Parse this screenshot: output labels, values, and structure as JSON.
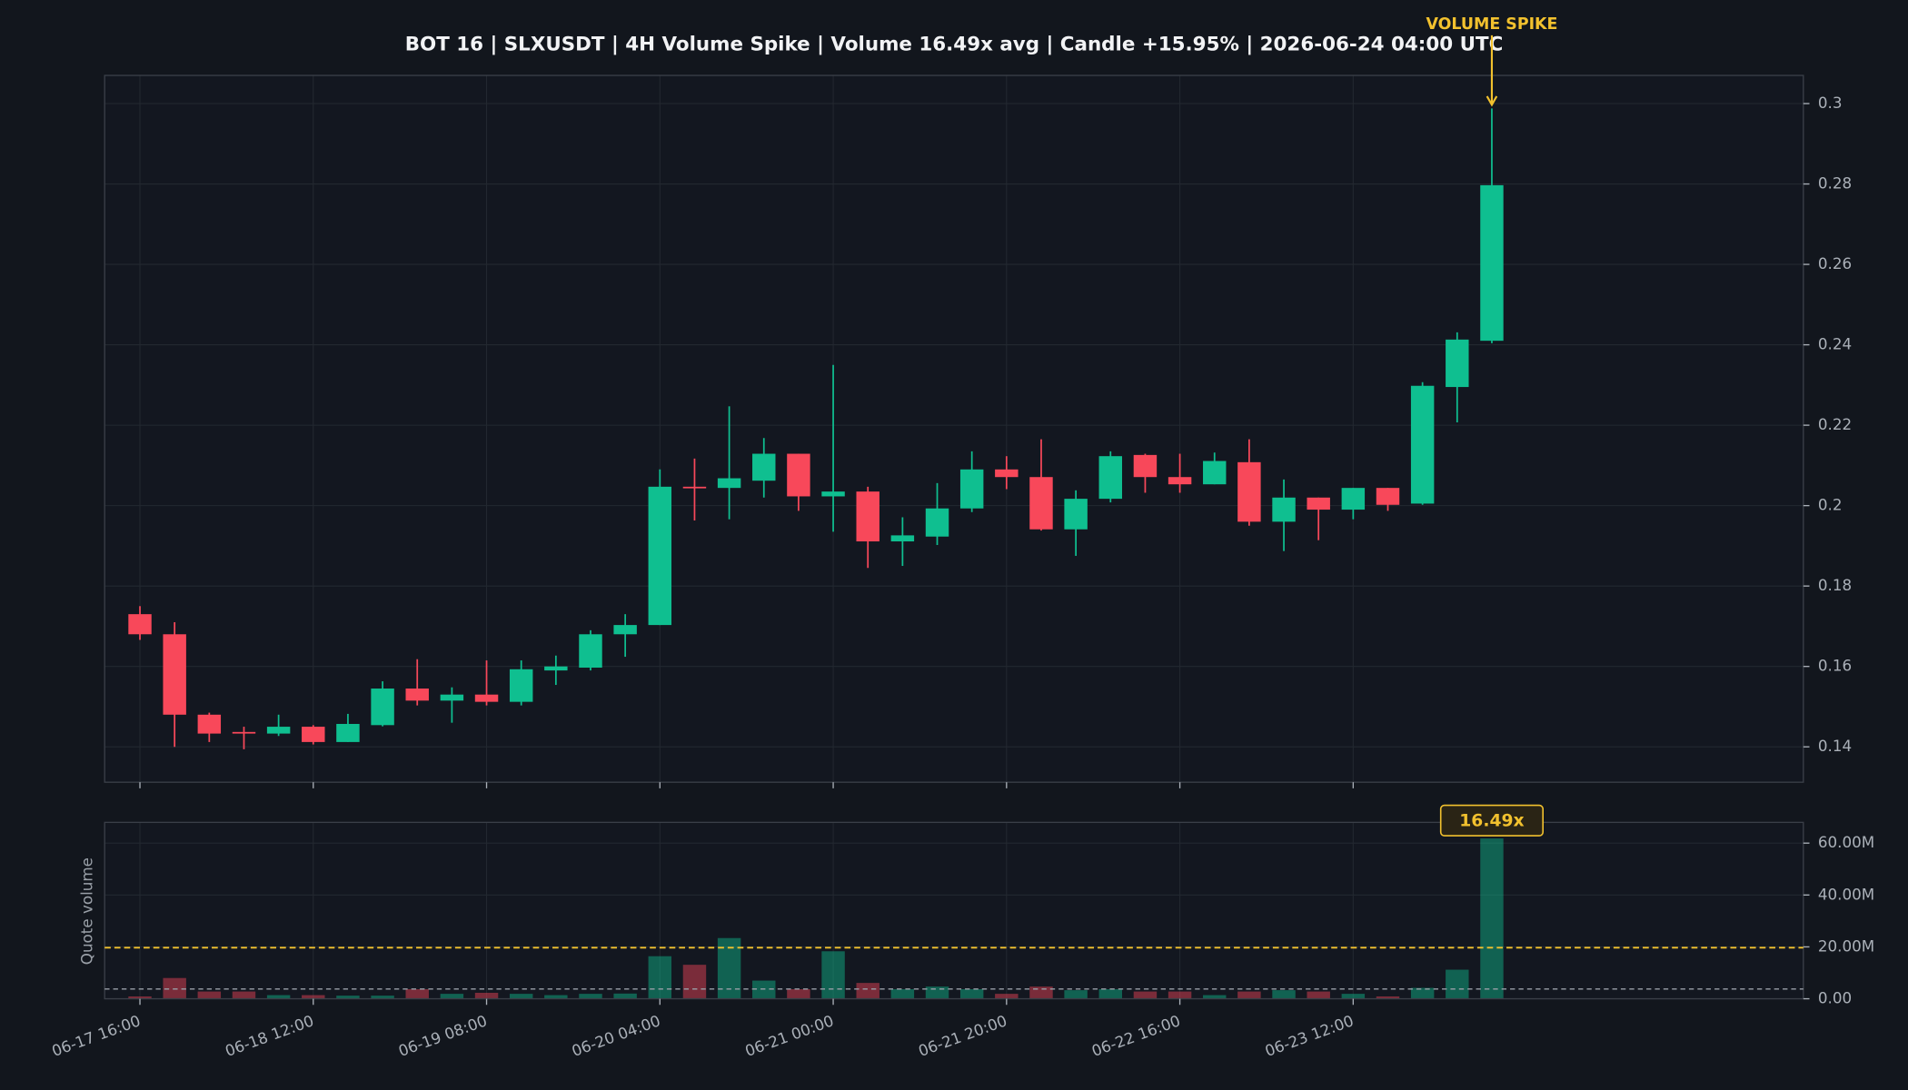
{
  "chart_data": [
    {
      "type": "candlestick",
      "title": "BOT 16 | SLXUSDT | 4H Volume Spike | Volume 16.49x avg | Candle +15.95% | 2026-06-24 04:00 UTC",
      "annotation": "VOLUME SPIKE",
      "up_color": "#0fbf90",
      "down_color": "#f8485a",
      "annotation_color": "#f2c12e",
      "open": [
        0.173,
        0.168,
        0.148,
        0.1437,
        0.1433,
        0.145,
        0.1412,
        0.1454,
        0.1545,
        0.1515,
        0.153,
        0.1512,
        0.159,
        0.1597,
        0.168,
        0.1703,
        0.2047,
        0.2044,
        0.2062,
        0.2129,
        0.2023,
        0.2035,
        0.1911,
        0.1923,
        0.1993,
        0.209,
        0.2071,
        0.1941,
        0.2017,
        0.2126,
        0.2071,
        0.2053,
        0.2108,
        0.196,
        0.202,
        0.199,
        0.2044,
        0.2005,
        0.2295,
        0.241
      ],
      "high": [
        0.175,
        0.171,
        0.1485,
        0.145,
        0.148,
        0.1454,
        0.1482,
        0.1563,
        0.1618,
        0.1548,
        0.1615,
        0.1615,
        0.1627,
        0.169,
        0.173,
        0.209,
        0.2117,
        0.2247,
        0.2168,
        0.2129,
        0.235,
        0.2047,
        0.1971,
        0.2056,
        0.2135,
        0.2123,
        0.2165,
        0.2038,
        0.2135,
        0.2129,
        0.2129,
        0.2132,
        0.2165,
        0.2065,
        0.202,
        0.2044,
        0.2044,
        0.2307,
        0.2431,
        0.2988
      ],
      "low": [
        0.1666,
        0.14,
        0.1412,
        0.1394,
        0.1427,
        0.1406,
        0.1412,
        0.1451,
        0.1503,
        0.146,
        0.1503,
        0.1503,
        0.1554,
        0.159,
        0.1624,
        0.1703,
        0.1963,
        0.1966,
        0.202,
        0.1987,
        0.1935,
        0.1845,
        0.185,
        0.1902,
        0.1984,
        0.2041,
        0.1938,
        0.1875,
        0.2008,
        0.2032,
        0.2032,
        0.2053,
        0.195,
        0.1887,
        0.1914,
        0.1966,
        0.1987,
        0.2002,
        0.2207,
        0.2404
      ],
      "close": [
        0.168,
        0.148,
        0.1433,
        0.1433,
        0.145,
        0.1412,
        0.1457,
        0.1545,
        0.1515,
        0.153,
        0.1512,
        0.1593,
        0.16,
        0.168,
        0.1703,
        0.2047,
        0.2043,
        0.2068,
        0.2129,
        0.2023,
        0.2035,
        0.1911,
        0.1926,
        0.1993,
        0.209,
        0.2071,
        0.1941,
        0.2017,
        0.2123,
        0.2071,
        0.2053,
        0.2111,
        0.196,
        0.202,
        0.199,
        0.2044,
        0.2002,
        0.2298,
        0.2413,
        0.2797
      ],
      "ylim": [
        0.1312,
        0.307
      ],
      "yticks": [
        0.14,
        0.16,
        0.18,
        0.2,
        0.22,
        0.24,
        0.26,
        0.28,
        0.3
      ],
      "grid": true
    },
    {
      "type": "bar",
      "ylabel": "Quote volume",
      "annotation": "16.49x",
      "x": [
        "06-17 16:00",
        null,
        null,
        null,
        null,
        "06-18 12:00",
        null,
        null,
        null,
        null,
        "06-19 08:00",
        null,
        null,
        null,
        null,
        "06-20 04:00",
        null,
        null,
        null,
        null,
        "06-21 00:00",
        null,
        null,
        null,
        null,
        "06-21 20:00",
        null,
        null,
        null,
        null,
        "06-22 16:00",
        null,
        null,
        null,
        null,
        "06-23 12:00",
        null,
        null,
        null,
        null
      ],
      "values": [
        900000,
        8000000,
        2800000,
        2800000,
        1400000,
        1400000,
        1200000,
        1200000,
        3700000,
        1900000,
        2300000,
        1900000,
        1400000,
        1900000,
        2000000,
        16400000,
        13100000,
        23400000,
        7000000,
        3700000,
        18300000,
        6100000,
        3700000,
        4700000,
        3700000,
        1900000,
        4700000,
        3300000,
        3700000,
        2800000,
        2800000,
        1400000,
        2800000,
        3300000,
        2800000,
        1900000,
        900000,
        4200000,
        11200000,
        61800000
      ],
      "avg_line": 3750000,
      "avg_color": "#9aa0a8",
      "threshold_line": 19700000,
      "threshold_color": "#f2c12e",
      "ylim": [
        0,
        68000000
      ],
      "yticks": [
        {
          "value": 0,
          "label": "0.00"
        },
        {
          "value": 20000000,
          "label": "20.00M"
        },
        {
          "value": 40000000,
          "label": "40.00M"
        },
        {
          "value": 60000000,
          "label": "60.00M"
        }
      ],
      "grid": true
    }
  ]
}
